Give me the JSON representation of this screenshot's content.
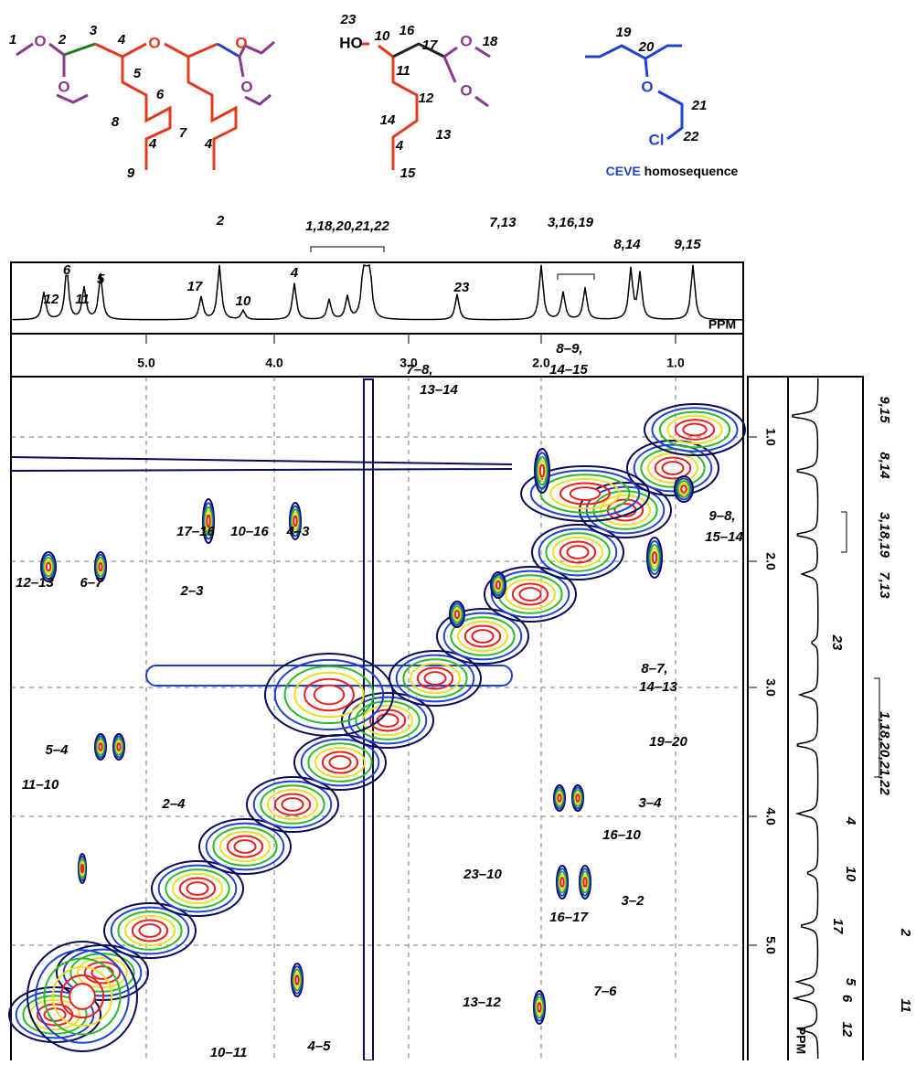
{
  "structure_labels": [
    "1",
    "O",
    "2",
    "3",
    "4",
    "O",
    "O",
    "O",
    "O",
    "5",
    "6",
    "7",
    "8",
    "9",
    "4",
    "4",
    "23",
    "HO",
    "10",
    "16",
    "17",
    "O",
    "18",
    "O",
    "11",
    "12",
    "13",
    "14",
    "4",
    "15",
    "19",
    "20",
    "O",
    "21",
    "22",
    "Cl"
  ],
  "structure_caption": {
    "highlight": "CEVE",
    "text": "homosequence"
  },
  "top_spectrum_labels": [
    "2",
    "1,18,20,21,22",
    "7,13",
    "3,16,19",
    "8,14",
    "9,15",
    "6",
    "12",
    "11",
    "5",
    "17",
    "10",
    "4",
    "23"
  ],
  "top_axis": {
    "ticks": [
      "5.0",
      "4.0",
      "3.0",
      "2.0",
      "1.0"
    ],
    "unit": "PPM"
  },
  "cross_peaks": [
    "8–9,",
    "14–15",
    "7–8,",
    "13–14",
    "17–16",
    "10–16",
    "4–3",
    "12–13",
    "6–7",
    "2–3",
    "9–8,",
    "15–14",
    "8–7,",
    "14–13",
    "19–20",
    "5–4",
    "11–10",
    "2–4",
    "3–4",
    "16–10",
    "23–10",
    "3–2",
    "16–17",
    "13–12",
    "7–6",
    "10–11",
    "4–5"
  ],
  "right_axis": {
    "ticks": [
      "1.0",
      "2.0",
      "3.0",
      "4.0",
      "5.0"
    ],
    "unit": "PPM"
  },
  "right_spectrum_labels": [
    "9,15",
    "8,14",
    "3,18,19",
    "7,13",
    "23",
    "1,18,20,21,22",
    "4",
    "10",
    "17",
    "2",
    "5",
    "6",
    "11",
    "12"
  ]
}
